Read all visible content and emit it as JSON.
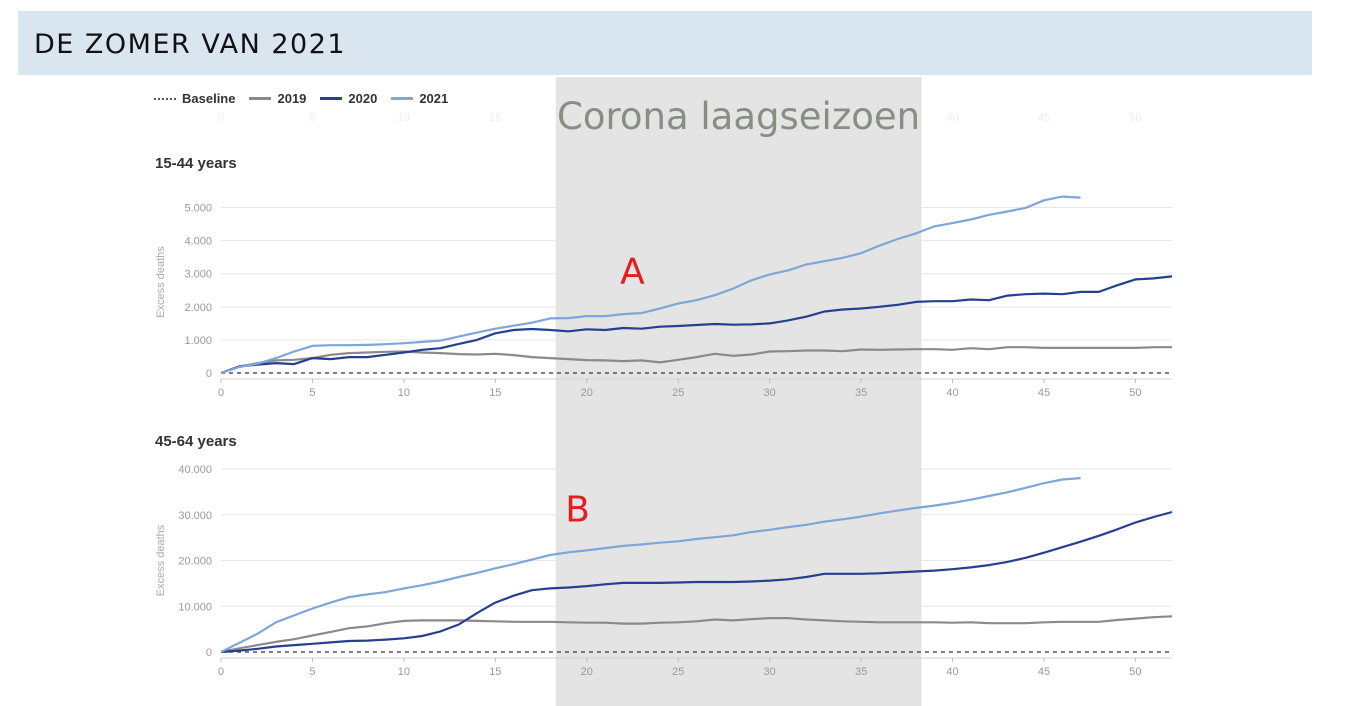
{
  "banner": {
    "title": "DE ZOMER VAN 2021"
  },
  "legend": [
    {
      "label": "Baseline",
      "color": "#555555",
      "style": "dotted"
    },
    {
      "label": "2019",
      "color": "#8a8a8a",
      "style": "solid"
    },
    {
      "label": "2020",
      "color": "#24408e",
      "style": "solid"
    },
    {
      "label": "2021",
      "color": "#7fa6d9",
      "style": "solid"
    }
  ],
  "annotation": {
    "shaded_label": "Corona laagseizoen",
    "shaded_range": [
      18.3,
      38.3
    ],
    "letters": [
      {
        "text": "A",
        "panel": 0,
        "x": 22.5,
        "y": 2700
      },
      {
        "text": "B",
        "panel": 1,
        "x": 19.5,
        "y": 28500
      }
    ]
  },
  "chart_data": [
    {
      "type": "line",
      "title": "15-44 years",
      "ylabel": "Excess deaths",
      "xlim": [
        0,
        52
      ],
      "ylim": [
        0,
        5500
      ],
      "xticks": [
        0,
        5,
        10,
        15,
        20,
        25,
        30,
        35,
        40,
        45,
        50
      ],
      "yticks": [
        0,
        1000,
        2000,
        3000,
        4000,
        5000
      ],
      "ytick_labels": [
        "0",
        "1.000",
        "2.000",
        "3.000",
        "4.000",
        "5.000"
      ],
      "grid": true,
      "series": [
        {
          "name": "Baseline",
          "x": [
            0,
            52
          ],
          "y": [
            0,
            0
          ]
        },
        {
          "name": "2019",
          "x": [
            0,
            1,
            2,
            3,
            4,
            5,
            6,
            7,
            8,
            9,
            10,
            11,
            12,
            13,
            14,
            15,
            16,
            17,
            18,
            19,
            20,
            21,
            22,
            23,
            24,
            25,
            26,
            27,
            28,
            29,
            30,
            31,
            32,
            33,
            34,
            35,
            36,
            37,
            38,
            39,
            40,
            41,
            42,
            43,
            44,
            45,
            46,
            47,
            48,
            49,
            50,
            51,
            52
          ],
          "y": [
            0,
            200,
            300,
            380,
            400,
            450,
            550,
            600,
            620,
            640,
            650,
            620,
            600,
            570,
            560,
            580,
            540,
            480,
            450,
            420,
            390,
            380,
            360,
            380,
            320,
            400,
            480,
            580,
            520,
            560,
            650,
            660,
            680,
            680,
            660,
            710,
            700,
            710,
            720,
            720,
            700,
            750,
            720,
            780,
            780,
            760,
            760,
            760,
            760,
            760,
            760,
            780,
            780
          ]
        },
        {
          "name": "2020",
          "x": [
            0,
            1,
            2,
            3,
            4,
            5,
            6,
            7,
            8,
            9,
            10,
            11,
            12,
            13,
            14,
            15,
            16,
            17,
            18,
            19,
            20,
            21,
            22,
            23,
            24,
            25,
            26,
            27,
            28,
            29,
            30,
            31,
            32,
            33,
            34,
            35,
            36,
            37,
            38,
            39,
            40,
            41,
            42,
            43,
            44,
            45,
            46,
            47,
            48,
            49,
            50,
            51,
            52
          ],
          "y": [
            0,
            200,
            250,
            300,
            270,
            450,
            420,
            480,
            480,
            550,
            620,
            700,
            750,
            880,
            1000,
            1200,
            1300,
            1330,
            1300,
            1260,
            1320,
            1300,
            1360,
            1340,
            1400,
            1420,
            1450,
            1480,
            1460,
            1470,
            1500,
            1590,
            1700,
            1860,
            1920,
            1950,
            2000,
            2060,
            2150,
            2170,
            2170,
            2220,
            2200,
            2340,
            2380,
            2400,
            2380,
            2450,
            2450,
            2650,
            2830,
            2860,
            2920
          ]
        },
        {
          "name": "2021",
          "x": [
            0,
            1,
            2,
            3,
            4,
            5,
            6,
            7,
            8,
            9,
            10,
            11,
            12,
            13,
            14,
            15,
            16,
            17,
            18,
            19,
            20,
            21,
            22,
            23,
            24,
            25,
            26,
            27,
            28,
            29,
            30,
            31,
            32,
            33,
            34,
            35,
            36,
            37,
            38,
            39,
            40,
            41,
            42,
            43,
            44,
            45,
            46,
            47
          ],
          "y": [
            0,
            180,
            280,
            450,
            650,
            820,
            840,
            840,
            850,
            870,
            900,
            940,
            980,
            1100,
            1220,
            1340,
            1430,
            1520,
            1650,
            1660,
            1720,
            1720,
            1780,
            1810,
            1950,
            2100,
            2200,
            2350,
            2550,
            2800,
            2980,
            3100,
            3280,
            3380,
            3480,
            3620,
            3850,
            4050,
            4220,
            4430,
            4530,
            4640,
            4780,
            4880,
            4990,
            5220,
            5330,
            5300
          ]
        }
      ]
    },
    {
      "type": "line",
      "title": "45-64 years",
      "ylabel": "Excess deaths",
      "xlim": [
        0,
        52
      ],
      "ylim": [
        0,
        40000
      ],
      "xticks": [
        0,
        5,
        10,
        15,
        20,
        25,
        30,
        35,
        40,
        45,
        50
      ],
      "yticks": [
        0,
        10000,
        20000,
        30000,
        40000
      ],
      "ytick_labels": [
        "0",
        "10.000",
        "20.000",
        "30.000",
        "40.000"
      ],
      "grid": true,
      "series": [
        {
          "name": "Baseline",
          "x": [
            0,
            52
          ],
          "y": [
            0,
            0
          ]
        },
        {
          "name": "2019",
          "x": [
            0,
            1,
            2,
            3,
            4,
            5,
            6,
            7,
            8,
            9,
            10,
            11,
            12,
            13,
            14,
            15,
            16,
            17,
            18,
            19,
            20,
            21,
            22,
            23,
            24,
            25,
            26,
            27,
            28,
            29,
            30,
            31,
            32,
            33,
            34,
            35,
            36,
            37,
            38,
            39,
            40,
            41,
            42,
            43,
            44,
            45,
            46,
            47,
            48,
            49,
            50,
            51,
            52
          ],
          "y": [
            0,
            800,
            1500,
            2200,
            2800,
            3600,
            4400,
            5200,
            5600,
            6300,
            6800,
            6900,
            6900,
            6900,
            6800,
            6700,
            6600,
            6600,
            6600,
            6500,
            6400,
            6400,
            6200,
            6200,
            6400,
            6500,
            6700,
            7100,
            6900,
            7200,
            7400,
            7400,
            7100,
            6900,
            6700,
            6600,
            6500,
            6500,
            6500,
            6500,
            6400,
            6500,
            6300,
            6300,
            6300,
            6500,
            6600,
            6600,
            6600,
            7000,
            7300,
            7600,
            7800
          ]
        },
        {
          "name": "2020",
          "x": [
            0,
            1,
            2,
            3,
            4,
            5,
            6,
            7,
            8,
            9,
            10,
            11,
            12,
            13,
            14,
            15,
            16,
            17,
            18,
            19,
            20,
            21,
            22,
            23,
            24,
            25,
            26,
            27,
            28,
            29,
            30,
            31,
            32,
            33,
            34,
            35,
            36,
            37,
            38,
            39,
            40,
            41,
            42,
            43,
            44,
            45,
            46,
            47,
            48,
            49,
            50,
            51,
            52
          ],
          "y": [
            0,
            300,
            700,
            1200,
            1500,
            1800,
            2100,
            2400,
            2500,
            2700,
            3000,
            3500,
            4500,
            6000,
            8500,
            10800,
            12300,
            13500,
            13900,
            14100,
            14400,
            14800,
            15100,
            15100,
            15100,
            15200,
            15300,
            15300,
            15300,
            15400,
            15600,
            15900,
            16400,
            17100,
            17100,
            17100,
            17200,
            17400,
            17600,
            17800,
            18100,
            18500,
            19000,
            19700,
            20600,
            21700,
            22900,
            24100,
            25400,
            26800,
            28300,
            29500,
            30600
          ]
        },
        {
          "name": "2021",
          "x": [
            0,
            1,
            2,
            3,
            4,
            5,
            6,
            7,
            8,
            9,
            10,
            11,
            12,
            13,
            14,
            15,
            16,
            17,
            18,
            19,
            20,
            21,
            22,
            23,
            24,
            25,
            26,
            27,
            28,
            29,
            30,
            31,
            32,
            33,
            34,
            35,
            36,
            37,
            38,
            39,
            40,
            41,
            42,
            43,
            44,
            45,
            46,
            47
          ],
          "y": [
            0,
            2000,
            4000,
            6500,
            8000,
            9500,
            10800,
            12000,
            12600,
            13100,
            13900,
            14600,
            15400,
            16400,
            17300,
            18300,
            19200,
            20200,
            21200,
            21800,
            22200,
            22700,
            23200,
            23500,
            23900,
            24200,
            24700,
            25100,
            25500,
            26200,
            26700,
            27300,
            27800,
            28500,
            29000,
            29600,
            30300,
            30900,
            31500,
            32000,
            32600,
            33300,
            34100,
            34900,
            35900,
            36900,
            37700,
            38000
          ]
        }
      ]
    }
  ]
}
